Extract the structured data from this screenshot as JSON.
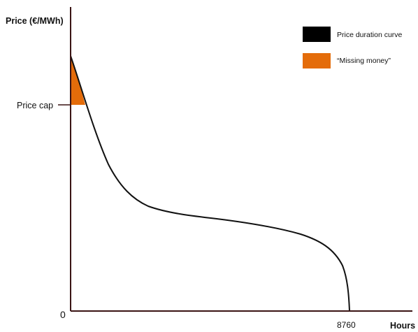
{
  "chart_data": {
    "type": "line",
    "ylabel": "Price (€/MWh)",
    "xlabel": "Hours",
    "x_ticks": [
      "0",
      "8760"
    ],
    "y_ticks": [
      "Price cap"
    ],
    "legend": {
      "placement": "top-right",
      "entries": [
        {
          "label": "Price duration curve",
          "color": "#000000"
        },
        {
          "label": "“Missing money”",
          "color": "#e46c0a"
        }
      ]
    },
    "colors": {
      "curve": "#111111",
      "missing_money_fill": "#e46c0a",
      "axis": "#3a1414"
    }
  }
}
